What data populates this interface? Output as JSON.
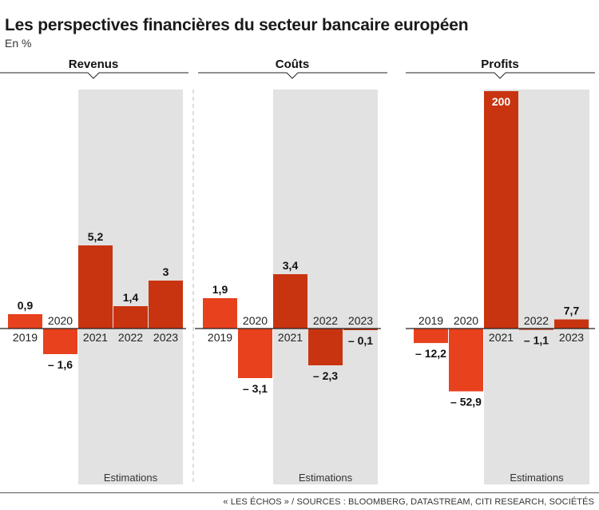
{
  "title": "Les perspectives financières du secteur bancaire européen",
  "subtitle": "En %",
  "source": "« LES ÉCHOS » / SOURCES : BLOOMBERG, DATASTREAM, CITI RESEARCH, SOCIÉTÉS",
  "estimation_label": "Estimations",
  "colors": {
    "bar": "#e8411e",
    "bar_estimate": "#c93410",
    "shade": "#e2e2e2",
    "axis": "#222222"
  },
  "chart_data": [
    {
      "type": "bar",
      "title": "Revenus",
      "categories": [
        "2019",
        "2020",
        "2021",
        "2022",
        "2023"
      ],
      "values": [
        0.9,
        -1.6,
        5.2,
        1.4,
        3
      ],
      "value_labels": [
        "0,9",
        "– 1,6",
        "5,2",
        "1,4",
        "3"
      ],
      "estimated_from": "2021"
    },
    {
      "type": "bar",
      "title": "Coûts",
      "categories": [
        "2019",
        "2020",
        "2021",
        "2022",
        "2023"
      ],
      "values": [
        1.9,
        -3.1,
        3.4,
        -2.3,
        -0.1
      ],
      "value_labels": [
        "1,9",
        "– 3,1",
        "3,4",
        "– 2,3",
        "– 0,1"
      ],
      "estimated_from": "2021"
    },
    {
      "type": "bar",
      "title": "Profits",
      "categories": [
        "2019",
        "2020",
        "2021",
        "2022",
        "2023"
      ],
      "values": [
        -12.2,
        -52.9,
        200,
        -1.1,
        7.7
      ],
      "value_labels": [
        "– 12,2",
        "– 52,9",
        "200",
        "– 1,1",
        "7,7"
      ],
      "value_label_inside": [
        false,
        false,
        true,
        false,
        false
      ],
      "estimated_from": "2021"
    }
  ]
}
